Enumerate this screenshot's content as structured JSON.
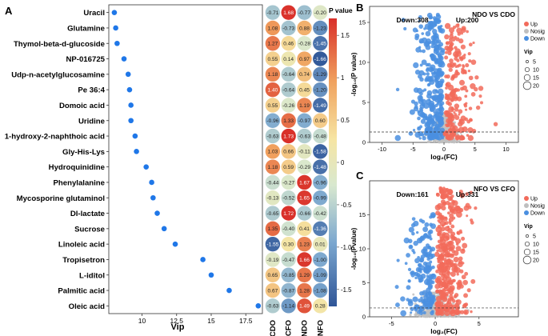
{
  "colors": {
    "dot": "#1f77e8",
    "up": "#f26b5b",
    "down": "#4a8fe0",
    "nosig": "#bfbfbf",
    "scale": [
      "#2f5597",
      "#7ba7cf",
      "#d8e8cf",
      "#f6e5a3",
      "#f0a25f",
      "#d9302a"
    ]
  },
  "chart_data": [
    {
      "panel": "A",
      "type": "scatter",
      "xlabel": "Vip",
      "x_ticks": [
        "10",
        "12.5",
        "15",
        "17.5"
      ],
      "xlim": [
        7.6,
        18.7
      ],
      "categories": [
        "Uracil",
        "Glutamine",
        "Thymol-beta-d-glucoside",
        "NP-016725",
        "Udp-n-acetylglucosamine",
        "Pe 36:4",
        "Domoic acid",
        "Uridine",
        "1-hydroxy-2-naphthoic acid",
        "Gly-His-Lys",
        "Hydroquinidine",
        "Phenylalanine",
        "Mycosporine glutaminol",
        "Dl-lactate",
        "Sucrose",
        "Linoleic acid",
        "Tropisetron",
        "L-iditol",
        "Palmitic acid",
        "Oleic acid"
      ],
      "values": [
        8.0,
        8.1,
        8.2,
        8.7,
        9.0,
        9.1,
        9.2,
        9.2,
        9.5,
        9.6,
        10.3,
        10.7,
        10.8,
        11.1,
        11.6,
        12.4,
        14.4,
        15.0,
        16.3,
        18.4
      ]
    },
    {
      "panel": "A-heatmap",
      "type": "heatmap",
      "columns": [
        "CDO",
        "CFO",
        "NDO",
        "NFO"
      ],
      "legend_title": "P value",
      "legend_ticks": [
        "1.5",
        "1",
        "0.5",
        "0",
        "-0.5",
        "-1.0",
        "-1.5"
      ],
      "value_range": [
        -1.7,
        1.7
      ],
      "rows": [
        [
          -0.71,
          1.68,
          -0.77,
          -0.2
        ],
        [
          1.08,
          -0.73,
          0.88,
          -1.23
        ],
        [
          1.27,
          0.46,
          -0.28,
          -1.45
        ],
        [
          0.55,
          0.14,
          0.97,
          -1.66
        ],
        [
          1.18,
          -0.64,
          0.74,
          -1.29
        ],
        [
          1.4,
          -0.64,
          0.45,
          -1.2
        ],
        [
          0.55,
          -0.26,
          1.19,
          -1.49
        ],
        [
          -0.96,
          1.33,
          -0.97,
          0.6
        ],
        [
          -0.63,
          1.73,
          -0.63,
          -0.48
        ],
        [
          1.03,
          0.66,
          -0.11,
          -1.58
        ],
        [
          1.18,
          0.59,
          -0.29,
          -1.48
        ],
        [
          -0.44,
          -0.27,
          1.67,
          -0.96
        ],
        [
          -0.13,
          -0.52,
          1.65,
          -0.99
        ],
        [
          -0.65,
          1.72,
          -0.66,
          -0.42
        ],
        [
          1.35,
          -0.4,
          0.41,
          -1.36
        ],
        [
          -1.55,
          0.3,
          1.23,
          0.01
        ],
        [
          -0.19,
          -0.47,
          1.66,
          -1.0
        ],
        [
          0.65,
          -0.85,
          1.29,
          -1.09
        ],
        [
          0.67,
          -0.87,
          1.28,
          -1.08
        ],
        [
          -0.63,
          -1.14,
          1.49,
          0.28
        ]
      ]
    },
    {
      "panel": "B",
      "type": "scatter",
      "title": "NDO VS CDO",
      "down_label": "Down:308",
      "up_label": "Up:200",
      "xlabel": "log₂(FC)",
      "ylabel": "-log₁₀(P value)",
      "xlim": [
        -12,
        12
      ],
      "ylim": [
        0,
        17
      ],
      "x_ticks": [
        "-10",
        "-5",
        "0",
        "5",
        "10"
      ],
      "y_ticks": [
        "0",
        "5",
        "10",
        "15"
      ],
      "threshold_y": 1.3,
      "legend": [
        "Up",
        "Nosig",
        "Down"
      ],
      "size_title": "Vip",
      "size_ticks": [
        "5",
        "10",
        "15",
        "20"
      ]
    },
    {
      "panel": "C",
      "type": "scatter",
      "title": "NFO VS CFO",
      "down_label": "Down:161",
      "up_label": "Up:331",
      "xlabel": "log₂(FC)",
      "ylabel": "-log₁₀(Pvalue)",
      "xlim": [
        -7.5,
        9.5
      ],
      "ylim": [
        0,
        20
      ],
      "x_ticks": [
        "-5",
        "0",
        "5"
      ],
      "y_ticks": [
        "0",
        "5",
        "10",
        "15"
      ],
      "threshold_y": 1.3,
      "legend": [
        "Up",
        "Nosig",
        "Down"
      ],
      "size_title": "Vip",
      "size_ticks": [
        "5",
        "10",
        "15",
        "20"
      ]
    }
  ],
  "panels": {
    "a": "A",
    "b": "B",
    "c": "C"
  }
}
